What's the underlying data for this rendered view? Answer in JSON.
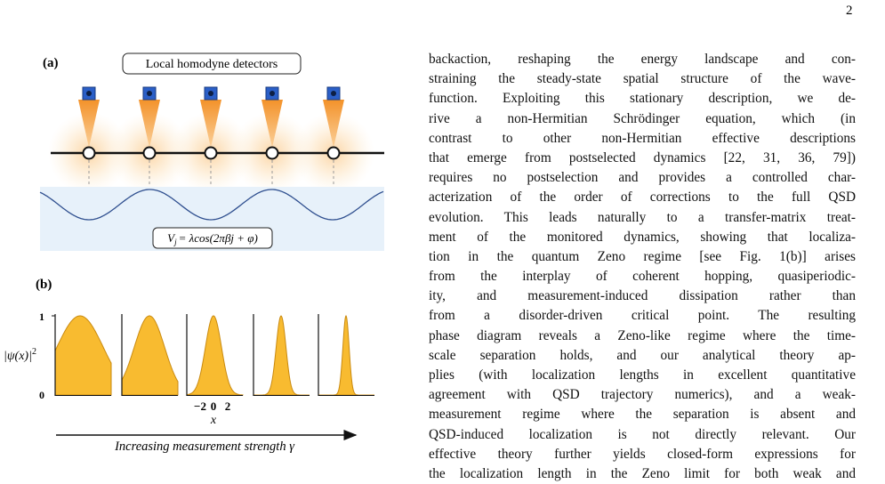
{
  "page_number": "2",
  "figure": {
    "panel_a": {
      "label": "(a)",
      "detectors_label": "Local homodyne detectors",
      "potential": {
        "lhs": "V",
        "sub": "j",
        "rhs": "= λcos(2πβj + φ)"
      }
    },
    "panel_b": {
      "label": "(b)",
      "y_label": {
        "main": "|ψ(x)|",
        "sup": "2"
      },
      "y_ticks": [
        "1",
        "0"
      ],
      "x_ticks": [
        "−2",
        "0",
        "2"
      ],
      "x_label": "x",
      "arrow_label": "Increasing measurement strength γ"
    }
  },
  "body": {
    "lines": [
      "backaction, reshaping the energy landscape and con-",
      "straining the steady-state spatial structure of the wave-",
      "function. Exploiting this stationary description, we de-",
      "rive a non-Hermitian Schrödinger equation, which (in",
      "contrast to other non-Hermitian effective descriptions",
      "that emerge from postselected dynamics [22, 31, 36, 79])",
      "requires no postselection and provides a controlled char-",
      "acterization of the order of corrections to the full QSD",
      "evolution. This leads naturally to a transfer-matrix treat-",
      "ment of the monitored dynamics, showing that localiza-",
      "tion in the quantum Zeno regime [see Fig. 1(b)] arises",
      "from the interplay of coherent hopping, quasiperiodic-",
      "ity, and measurement-induced dissipation rather than",
      "from a disorder-driven critical point.  The resulting",
      "phase diagram reveals a Zeno-like regime where the time-",
      "scale separation holds, and our analytical theory ap-",
      "plies (with localization lengths in excellent quantitative",
      "agreement with QSD trajectory numerics), and a weak-",
      "measurement regime where the separation is absent and",
      "QSD-induced localization is not directly relevant. Our",
      "effective theory further yields closed-form expressions for",
      "the localization length in the Zeno limit for both weak and"
    ]
  }
}
